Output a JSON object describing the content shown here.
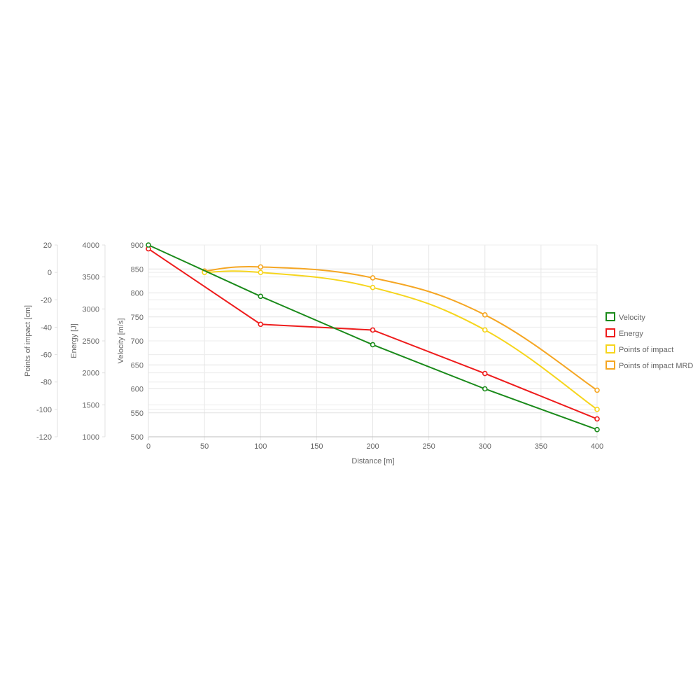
{
  "chart_data": {
    "type": "line",
    "x_axis": {
      "label": "Distance [m]",
      "range": [
        0,
        400
      ],
      "ticks": [
        "0",
        "50",
        "100",
        "150",
        "200",
        "250",
        "300",
        "350",
        "400"
      ]
    },
    "y_axes": [
      {
        "id": "velocity",
        "label": "Velocity [m/s]",
        "range": [
          500,
          900
        ],
        "ticks": [
          "500",
          "550",
          "600",
          "650",
          "700",
          "750",
          "800",
          "850",
          "900"
        ]
      },
      {
        "id": "energy",
        "label": "Energy [J]",
        "range": [
          1000,
          4000
        ],
        "ticks": [
          "1000",
          "1500",
          "2000",
          "2500",
          "3000",
          "3500",
          "4000"
        ]
      },
      {
        "id": "impact",
        "label": "Points of impact [cm]",
        "range": [
          -120,
          20
        ],
        "ticks": [
          "-120",
          "-100",
          "-80",
          "-60",
          "-40",
          "-20",
          "0",
          "20"
        ]
      }
    ],
    "series": [
      {
        "name": "Velocity",
        "axis": "velocity",
        "color": "#1a8a1a",
        "smooth": false,
        "points": [
          [
            0,
            900
          ],
          [
            100,
            793
          ],
          [
            200,
            692
          ],
          [
            300,
            600
          ],
          [
            400,
            515
          ]
        ]
      },
      {
        "name": "Energy",
        "axis": "energy",
        "color": "#ee1c1c",
        "smooth": false,
        "points": [
          [
            0,
            3940
          ],
          [
            100,
            2760
          ],
          [
            200,
            2670
          ],
          [
            300,
            1990
          ],
          [
            400,
            1280
          ]
        ]
      },
      {
        "name": "Points of impact",
        "axis": "impact",
        "color": "#f6d51d",
        "smooth": true,
        "points": [
          [
            50,
            0
          ],
          [
            100,
            0
          ],
          [
            200,
            -11
          ],
          [
            300,
            -42
          ],
          [
            400,
            -100
          ]
        ]
      },
      {
        "name": "Points of impact MRD",
        "axis": "impact",
        "color": "#f5a623",
        "smooth": true,
        "points": [
          [
            50,
            1
          ],
          [
            100,
            4
          ],
          [
            200,
            -4
          ],
          [
            300,
            -31
          ],
          [
            400,
            -86
          ]
        ]
      }
    ],
    "legend": {
      "position": "right",
      "items": [
        "Velocity",
        "Energy",
        "Points of impact",
        "Points of impact MRD"
      ]
    },
    "grid": true
  }
}
